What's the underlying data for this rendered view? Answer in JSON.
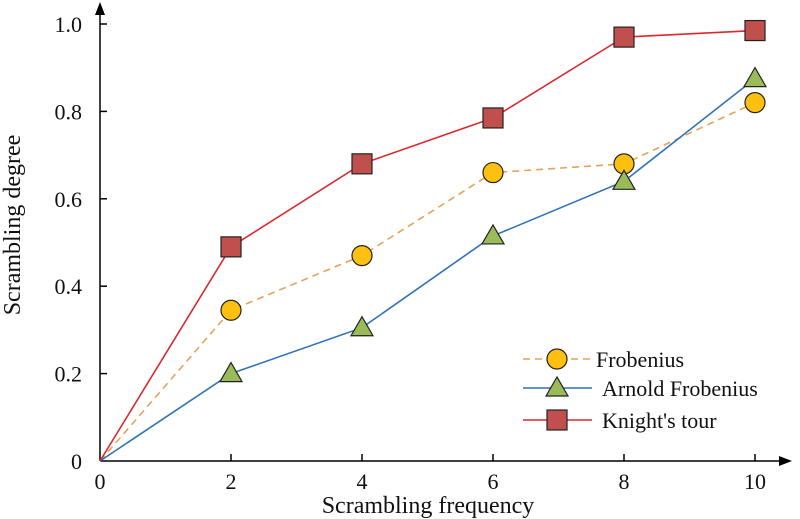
{
  "chart_data": {
    "type": "line",
    "title": "",
    "xlabel": "Scrambling frequency",
    "ylabel": "Scrambling degree",
    "x": [
      0,
      2,
      4,
      6,
      8,
      10
    ],
    "xlim": [
      0,
      10
    ],
    "ylim": [
      0,
      1.0
    ],
    "xticks": [
      0,
      2,
      4,
      6,
      8,
      10
    ],
    "yticks": [
      0,
      0.2,
      0.4,
      0.6,
      0.8,
      1.0
    ],
    "xtick_labels": [
      "0",
      "2",
      "4",
      "6",
      "8",
      "10"
    ],
    "ytick_labels": [
      "0",
      "0.2",
      "0.4",
      "0.6",
      "0.8",
      "1.0"
    ],
    "grid": false,
    "legend_position": "bottom-right",
    "series": [
      {
        "name": "Frobenius",
        "values": [
          0,
          0.345,
          0.47,
          0.66,
          0.68,
          0.82
        ],
        "color": "#e8a15a",
        "marker": "circle",
        "marker_color": "#fdc010",
        "line_style": "dashed"
      },
      {
        "name": "Arnold Frobenius",
        "values": [
          0,
          0.2,
          0.305,
          0.515,
          0.64,
          0.875
        ],
        "color": "#2f73b6",
        "marker": "triangle",
        "marker_color": "#9bbb59",
        "line_style": "solid"
      },
      {
        "name": "Knight's tour",
        "values": [
          0,
          0.49,
          0.68,
          0.785,
          0.97,
          0.985
        ],
        "color": "#d9282f",
        "marker": "square",
        "marker_color": "#c0504d",
        "line_style": "solid"
      }
    ]
  }
}
